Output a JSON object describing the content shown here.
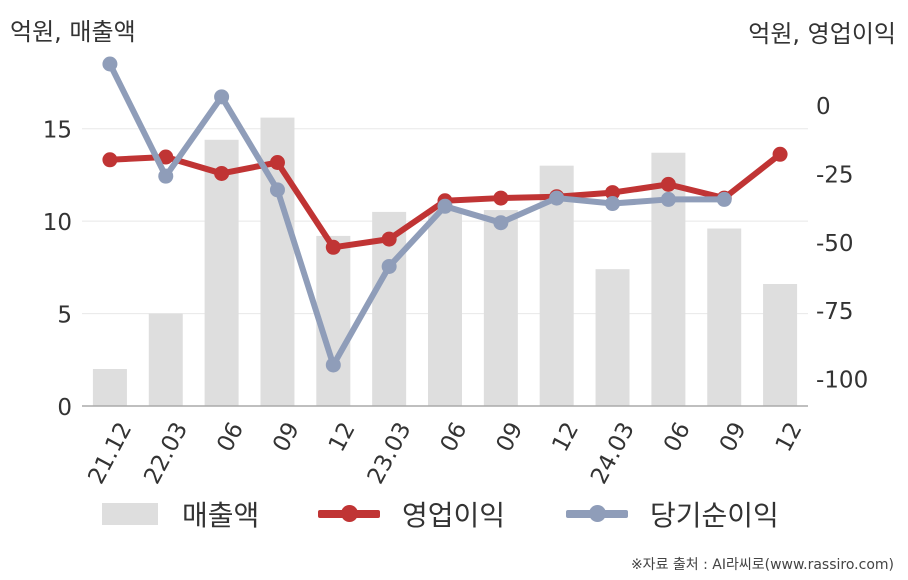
{
  "units": {
    "left": "억원, 매출액",
    "right": "억원, 영업이익"
  },
  "legend": {
    "sales": "매출액",
    "op_income": "영업이익",
    "net_income": "당기순이익"
  },
  "source": "※자료 출처 : AI라씨로(www.rassiro.com)",
  "colors": {
    "sales": "#dedede",
    "op_income": "#c03434",
    "net_income": "#8f9db9"
  },
  "chart_data": {
    "type": "bar",
    "categories": [
      "21.12",
      "22.03",
      "06",
      "09",
      "12",
      "23.03",
      "06",
      "09",
      "12",
      "24.03",
      "06",
      "09",
      "12"
    ],
    "left_axis": {
      "range": [
        0,
        18.5
      ],
      "ticks": [
        0,
        5,
        10,
        15
      ],
      "ticklabels": [
        "0",
        "5",
        "10",
        "15"
      ]
    },
    "right_axis": {
      "range": [
        -110,
        15
      ],
      "ticks": [
        0,
        -25,
        -50,
        -75,
        -100
      ],
      "ticklabels": [
        "0",
        "-25",
        "-50",
        "-75",
        "-100"
      ]
    },
    "series": [
      {
        "name": "매출액",
        "type": "bar",
        "axis": "left",
        "values": [
          2.0,
          5.0,
          14.4,
          15.6,
          9.2,
          10.5,
          10.6,
          10.6,
          13.0,
          7.4,
          13.7,
          9.6,
          6.6
        ]
      },
      {
        "name": "영업이익",
        "type": "line",
        "axis": "right",
        "values": [
          -20,
          -19,
          -25,
          -21,
          -52,
          -49,
          -35,
          -34,
          -33.5,
          -32,
          -29,
          -34,
          -18
        ]
      },
      {
        "name": "당기순이익",
        "type": "line",
        "axis": "right",
        "values": [
          15,
          -26,
          3,
          -31,
          -95,
          -59,
          -37,
          -43,
          -34,
          -36,
          -34.5,
          -34.5,
          null
        ]
      }
    ],
    "grid": true
  }
}
